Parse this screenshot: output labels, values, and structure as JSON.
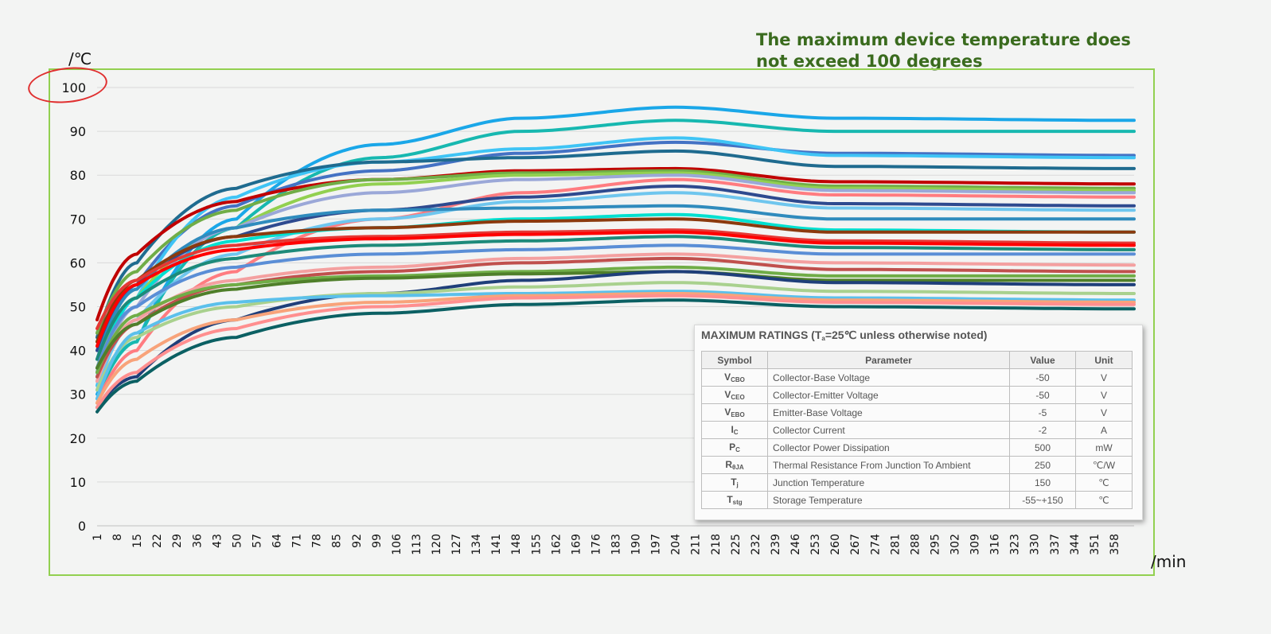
{
  "annotation": "The maximum device temperature does not exceed 100 degrees",
  "chart_data": {
    "type": "line",
    "ylabel": "/℃",
    "xlabel": "/min",
    "ylim": [
      0,
      100
    ],
    "yticks": [
      0,
      10,
      20,
      30,
      40,
      50,
      60,
      70,
      80,
      90,
      100
    ],
    "xlim": [
      1,
      365
    ],
    "categories": [
      "1",
      "8",
      "15",
      "22",
      "29",
      "36",
      "43",
      "50",
      "57",
      "64",
      "71",
      "78",
      "85",
      "92",
      "99",
      "106",
      "113",
      "120",
      "127",
      "134",
      "141",
      "148",
      "155",
      "162",
      "169",
      "176",
      "183",
      "190",
      "197",
      "204",
      "211",
      "218",
      "225",
      "232",
      "239",
      "246",
      "253",
      "260",
      "267",
      "274",
      "281",
      "288",
      "295",
      "302",
      "309",
      "316",
      "323",
      "330",
      "337",
      "344",
      "351",
      "358"
    ],
    "grid": true,
    "highlight_tick": "100",
    "series": [
      {
        "color": "#1aa7e8",
        "x": [
          1,
          15,
          50,
          100,
          150,
          204,
          260,
          365
        ],
        "y": [
          30,
          42,
          70,
          87,
          93,
          95.5,
          93,
          92.5
        ]
      },
      {
        "color": "#17b8b0",
        "x": [
          1,
          15,
          50,
          100,
          150,
          204,
          260,
          365
        ],
        "y": [
          29,
          42,
          68,
          84,
          90,
          92.5,
          90,
          90
        ]
      },
      {
        "color": "#4472c4",
        "x": [
          1,
          15,
          50,
          100,
          150,
          204,
          260,
          365
        ],
        "y": [
          35,
          55,
          73,
          81,
          85,
          87.5,
          85,
          84.5
        ]
      },
      {
        "color": "#3fc4f5",
        "x": [
          1,
          15,
          50,
          100,
          150,
          204,
          260,
          365
        ],
        "y": [
          32,
          52,
          75,
          83,
          86,
          88.5,
          84.5,
          84
        ]
      },
      {
        "color": "#1f6b8f",
        "x": [
          1,
          15,
          50,
          100,
          150,
          204,
          260,
          365
        ],
        "y": [
          43,
          60,
          77,
          83,
          84,
          85.5,
          82,
          81.5
        ]
      },
      {
        "color": "#c00000",
        "x": [
          1,
          15,
          50,
          100,
          150,
          204,
          260,
          365
        ],
        "y": [
          47,
          62,
          74,
          79,
          81,
          81.5,
          78.5,
          78
        ]
      },
      {
        "color": "#70ad47",
        "x": [
          1,
          15,
          50,
          100,
          150,
          204,
          260,
          365
        ],
        "y": [
          44,
          58,
          72,
          79,
          80.5,
          81,
          77.5,
          77
        ]
      },
      {
        "color": "#92d050",
        "x": [
          1,
          15,
          50,
          100,
          150,
          204,
          260,
          365
        ],
        "y": [
          36,
          52,
          68,
          78,
          80,
          80.5,
          77,
          76.5
        ]
      },
      {
        "color": "#9ba8d8",
        "x": [
          1,
          15,
          50,
          100,
          150,
          204,
          260,
          365
        ],
        "y": [
          33,
          50,
          68,
          76,
          79,
          80,
          76.5,
          76
        ]
      },
      {
        "color": "#ff7c80",
        "x": [
          1,
          15,
          50,
          100,
          150,
          204,
          260,
          365
        ],
        "y": [
          28,
          40,
          58,
          70,
          76,
          79,
          75.5,
          75
        ]
      },
      {
        "color": "#2e4a8f",
        "x": [
          1,
          15,
          50,
          100,
          150,
          204,
          260,
          365
        ],
        "y": [
          40,
          55,
          66,
          72,
          75,
          77.5,
          73.5,
          73
        ]
      },
      {
        "color": "#6fc6ee",
        "x": [
          1,
          15,
          50,
          100,
          150,
          204,
          260,
          365
        ],
        "y": [
          31,
          47,
          62,
          70,
          74,
          76,
          72.5,
          72
        ]
      },
      {
        "color": "#2f8bbd",
        "x": [
          1,
          15,
          50,
          100,
          150,
          204,
          260,
          365
        ],
        "y": [
          38,
          54,
          68,
          72,
          72.5,
          73,
          70,
          70
        ]
      },
      {
        "color": "#00e0d0",
        "x": [
          1,
          15,
          50,
          100,
          150,
          204,
          260,
          365
        ],
        "y": [
          34,
          52,
          65,
          68,
          70,
          71,
          67.5,
          67
        ]
      },
      {
        "color": "#8b3a0e",
        "x": [
          1,
          15,
          50,
          100,
          150,
          204,
          260,
          365
        ],
        "y": [
          42,
          56,
          66,
          68,
          69.5,
          70,
          67,
          67
        ]
      },
      {
        "color": "#e53935",
        "x": [
          1,
          15,
          50,
          100,
          150,
          204,
          260,
          365
        ],
        "y": [
          45,
          56,
          64,
          66,
          67,
          67.5,
          65,
          64.5
        ]
      },
      {
        "color": "#ff0000",
        "x": [
          1,
          15,
          50,
          100,
          150,
          204,
          260,
          365
        ],
        "y": [
          41,
          55,
          63,
          65.5,
          66.5,
          67,
          64.5,
          64
        ]
      },
      {
        "color": "#1d8a7a",
        "x": [
          1,
          15,
          50,
          100,
          150,
          204,
          260,
          365
        ],
        "y": [
          38,
          52,
          61,
          64,
          65,
          66,
          63.5,
          63
        ]
      },
      {
        "color": "#5a8ed6",
        "x": [
          1,
          15,
          50,
          100,
          150,
          204,
          260,
          365
        ],
        "y": [
          36,
          50,
          59,
          62,
          63,
          64,
          62,
          62
        ]
      },
      {
        "color": "#f4a0a0",
        "x": [
          1,
          15,
          50,
          100,
          150,
          204,
          260,
          365
        ],
        "y": [
          33,
          47,
          56,
          59,
          61,
          62,
          60,
          59.5
        ]
      },
      {
        "color": "#c0504d",
        "x": [
          1,
          15,
          50,
          100,
          150,
          204,
          260,
          365
        ],
        "y": [
          34,
          46,
          55,
          58,
          60,
          61,
          58.5,
          58
        ]
      },
      {
        "color": "#70ad47",
        "x": [
          1,
          15,
          50,
          100,
          150,
          204,
          260,
          365
        ],
        "y": [
          35,
          48,
          55,
          57,
          58,
          59,
          57,
          57
        ]
      },
      {
        "color": "#4f7f2a",
        "x": [
          1,
          15,
          50,
          100,
          150,
          204,
          260,
          365
        ],
        "y": [
          36,
          46,
          54,
          56.5,
          57.5,
          58,
          56,
          56
        ]
      },
      {
        "color": "#1f3f7a",
        "x": [
          1,
          15,
          50,
          100,
          150,
          204,
          260,
          365
        ],
        "y": [
          27,
          34,
          47,
          53,
          56,
          58,
          55.5,
          55
        ]
      },
      {
        "color": "#a9d18e",
        "x": [
          1,
          15,
          50,
          100,
          150,
          204,
          260,
          365
        ],
        "y": [
          31,
          43,
          50,
          53,
          54.5,
          55.5,
          53.5,
          53
        ]
      },
      {
        "color": "#5bc0eb",
        "x": [
          1,
          15,
          50,
          100,
          150,
          204,
          260,
          365
        ],
        "y": [
          29,
          44,
          51,
          52.5,
          53,
          53.5,
          52,
          51.5
        ]
      },
      {
        "color": "#f8a37a",
        "x": [
          1,
          15,
          50,
          100,
          150,
          204,
          260,
          365
        ],
        "y": [
          28,
          38,
          47,
          51,
          52.5,
          53,
          51.5,
          51
        ]
      },
      {
        "color": "#ff8f8f",
        "x": [
          1,
          15,
          50,
          100,
          150,
          204,
          260,
          365
        ],
        "y": [
          27,
          35,
          45,
          50,
          52,
          52.5,
          51,
          50.5
        ]
      },
      {
        "color": "#0b6063",
        "x": [
          1,
          15,
          50,
          100,
          150,
          204,
          260,
          365
        ],
        "y": [
          26,
          33,
          43,
          48.5,
          50.5,
          51.5,
          50,
          49.5
        ]
      }
    ]
  },
  "ratings": {
    "title": "MAXIMUM RATINGS (T",
    "title_sub": "a",
    "title_rest": "=25℃ unless otherwise noted)",
    "headers": [
      "Symbol",
      "Parameter",
      "Value",
      "Unit"
    ],
    "rows": [
      {
        "sym": "V",
        "sub": "CBO",
        "param": "Collector-Base Voltage",
        "value": "-50",
        "unit": "V"
      },
      {
        "sym": "V",
        "sub": "CEO",
        "param": "Collector-Emitter Voltage",
        "value": "-50",
        "unit": "V"
      },
      {
        "sym": "V",
        "sub": "EBO",
        "param": "Emitter-Base Voltage",
        "value": "-5",
        "unit": "V"
      },
      {
        "sym": "I",
        "sub": "C",
        "param": "Collector Current",
        "value": "-2",
        "unit": "A"
      },
      {
        "sym": "P",
        "sub": "C",
        "param": "Collector Power Dissipation",
        "value": "500",
        "unit": "mW"
      },
      {
        "sym": "R",
        "sub": "θJA",
        "param": "Thermal Resistance From Junction To Ambient",
        "value": "250",
        "unit": "℃/W"
      },
      {
        "sym": "T",
        "sub": "j",
        "param": "Junction Temperature",
        "value": "150",
        "unit": "℃"
      },
      {
        "sym": "T",
        "sub": "stg",
        "param": "Storage Temperature",
        "value": "-55~+150",
        "unit": "℃"
      }
    ],
    "highlight_row": 6
  }
}
